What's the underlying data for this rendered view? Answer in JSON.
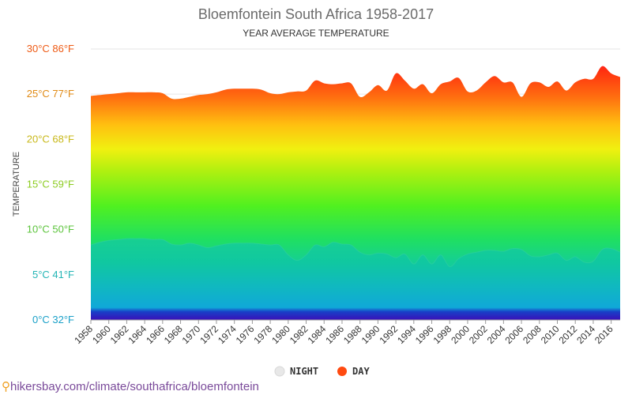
{
  "chart_data": {
    "type": "area",
    "title": "Bloemfontein South Africa 1958-2017",
    "subtitle": "YEAR AVERAGE TEMPERATURE",
    "ylabel": "TEMPERATURE",
    "ylim": [
      0,
      30
    ],
    "yticks": [
      {
        "value": 0,
        "label": "0°C 32°F",
        "color": "#1aa0c8"
      },
      {
        "value": 5,
        "label": "5°C 41°F",
        "color": "#22b5b5"
      },
      {
        "value": 10,
        "label": "10°C 50°F",
        "color": "#5cc43c"
      },
      {
        "value": 15,
        "label": "15°C 59°F",
        "color": "#8ccc20"
      },
      {
        "value": 20,
        "label": "20°C 68°F",
        "color": "#c8b818"
      },
      {
        "value": 25,
        "label": "25°C 77°F",
        "color": "#e08a14"
      },
      {
        "value": 30,
        "label": "30°C 86°F",
        "color": "#ee5a14"
      }
    ],
    "x": [
      1958,
      1959,
      1960,
      1961,
      1962,
      1963,
      1964,
      1965,
      1966,
      1967,
      1968,
      1969,
      1970,
      1971,
      1972,
      1973,
      1974,
      1975,
      1976,
      1977,
      1978,
      1979,
      1980,
      1981,
      1982,
      1983,
      1984,
      1985,
      1986,
      1987,
      1988,
      1989,
      1990,
      1991,
      1992,
      1993,
      1994,
      1995,
      1996,
      1997,
      1998,
      1999,
      2000,
      2001,
      2002,
      2003,
      2004,
      2005,
      2006,
      2007,
      2008,
      2009,
      2010,
      2011,
      2012,
      2013,
      2014,
      2015,
      2016,
      2017
    ],
    "xticks": [
      "1958",
      "1960",
      "1962",
      "1964",
      "1966",
      "1968",
      "1970",
      "1972",
      "1974",
      "1976",
      "1978",
      "1980",
      "1982",
      "1984",
      "1986",
      "1988",
      "1990",
      "1992",
      "1994",
      "1996",
      "1998",
      "2000",
      "2002",
      "2004",
      "2006",
      "2008",
      "2010",
      "2012",
      "2014",
      "2016"
    ],
    "series": [
      {
        "name": "DAY",
        "color": "#ff4a10",
        "values": [
          24.8,
          24.9,
          25.0,
          25.1,
          25.2,
          25.2,
          25.2,
          25.2,
          25.1,
          24.5,
          24.5,
          24.7,
          24.9,
          25.0,
          25.2,
          25.5,
          25.6,
          25.6,
          25.6,
          25.5,
          25.1,
          25.0,
          25.2,
          25.3,
          25.4,
          26.5,
          26.2,
          26.1,
          26.2,
          26.2,
          24.7,
          25.2,
          26.0,
          25.4,
          27.3,
          26.5,
          25.6,
          26.1,
          25.1,
          26.1,
          26.4,
          26.8,
          25.3,
          25.4,
          26.3,
          27.0,
          26.3,
          26.3,
          24.7,
          26.2,
          26.3,
          25.8,
          26.4,
          25.4,
          26.3,
          26.7,
          26.7,
          28.1,
          27.3,
          26.9
        ]
      },
      {
        "name": "NIGHT",
        "color": "#e8e8e8",
        "values": [
          8.3,
          8.6,
          8.8,
          8.9,
          9.0,
          9.0,
          9.0,
          8.9,
          8.9,
          8.4,
          8.3,
          8.5,
          8.3,
          8.0,
          8.2,
          8.4,
          8.5,
          8.5,
          8.5,
          8.4,
          8.3,
          8.3,
          7.2,
          6.6,
          7.2,
          8.3,
          8.1,
          8.6,
          8.4,
          8.3,
          7.5,
          7.2,
          7.4,
          7.3,
          6.9,
          7.3,
          6.2,
          7.2,
          6.2,
          7.2,
          5.9,
          6.8,
          7.3,
          7.5,
          7.7,
          7.7,
          7.6,
          7.9,
          7.8,
          7.1,
          7.0,
          7.2,
          7.4,
          6.6,
          7.0,
          6.4,
          6.5,
          7.8,
          7.9,
          7.5
        ]
      }
    ],
    "legend": [
      {
        "label": "NIGHT",
        "color": "#e8e8e8"
      },
      {
        "label": "DAY",
        "color": "#ff4a10"
      }
    ],
    "legend_position": "bottom-center",
    "grid": true
  },
  "source": {
    "pin_icon": "location-pin-icon",
    "text": "hikersbay.com/climate/southafrica/bloemfontein"
  }
}
